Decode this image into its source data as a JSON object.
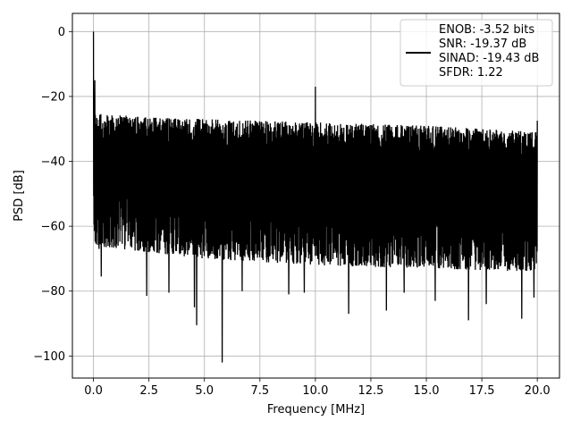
{
  "chart_data": {
    "type": "line",
    "title": "",
    "xlabel": "Frequency [MHz]",
    "ylabel": "PSD [dB]",
    "xlim": [
      -0.95,
      21.0
    ],
    "ylim": [
      -106.8,
      5.6
    ],
    "xticks": [
      0.0,
      2.5,
      5.0,
      7.5,
      10.0,
      12.5,
      15.0,
      17.5,
      20.0
    ],
    "xtick_labels": [
      "0.0",
      "2.5",
      "5.0",
      "7.5",
      "10.0",
      "12.5",
      "15.0",
      "17.5",
      "20.0"
    ],
    "yticks": [
      0,
      -20,
      -40,
      -60,
      -80,
      -100
    ],
    "ytick_labels": [
      "0",
      "−20",
      "−40",
      "−60",
      "−80",
      "−100"
    ],
    "grid": true,
    "legend_position": "top-right",
    "legend_lines": [
      "ENOB: -3.52 bits",
      "SNR: -19.37 dB",
      "SINAD: -19.43 dB",
      "SFDR: 1.22"
    ],
    "line_color": "#000000",
    "series": [
      {
        "x_range": [
          0.0,
          20.0
        ],
        "noise_upper_envelope": [
          [
            0.0,
            -25
          ],
          [
            2.5,
            -26.5
          ],
          [
            5.0,
            -27
          ],
          [
            10.0,
            -28
          ],
          [
            15.0,
            -29
          ],
          [
            20.0,
            -31
          ]
        ],
        "noise_lower_envelope": [
          [
            0.0,
            -66
          ],
          [
            5.0,
            -70
          ],
          [
            10.0,
            -72
          ],
          [
            15.0,
            -73
          ],
          [
            20.0,
            -74
          ]
        ],
        "spikes": [
          {
            "x": 0.0,
            "y": 0.0
          },
          {
            "x": 0.06,
            "y": -15.0
          },
          {
            "x": 10.0,
            "y": -17.0
          },
          {
            "x": 20.0,
            "y": -27.5
          }
        ],
        "dips": [
          {
            "x": 0.25,
            "y": -67.0
          },
          {
            "x": 0.35,
            "y": -75.5
          },
          {
            "x": 2.4,
            "y": -81.5
          },
          {
            "x": 3.4,
            "y": -80.5
          },
          {
            "x": 4.55,
            "y": -85.0
          },
          {
            "x": 4.65,
            "y": -90.5
          },
          {
            "x": 5.8,
            "y": -102.0
          },
          {
            "x": 6.7,
            "y": -80.0
          },
          {
            "x": 8.8,
            "y": -81.0
          },
          {
            "x": 9.5,
            "y": -80.5
          },
          {
            "x": 11.5,
            "y": -87.0
          },
          {
            "x": 13.2,
            "y": -86.0
          },
          {
            "x": 14.0,
            "y": -80.5
          },
          {
            "x": 15.4,
            "y": -83.0
          },
          {
            "x": 16.9,
            "y": -89.0
          },
          {
            "x": 17.7,
            "y": -84.0
          },
          {
            "x": 19.3,
            "y": -88.5
          },
          {
            "x": 19.85,
            "y": -82.0
          }
        ]
      }
    ]
  }
}
